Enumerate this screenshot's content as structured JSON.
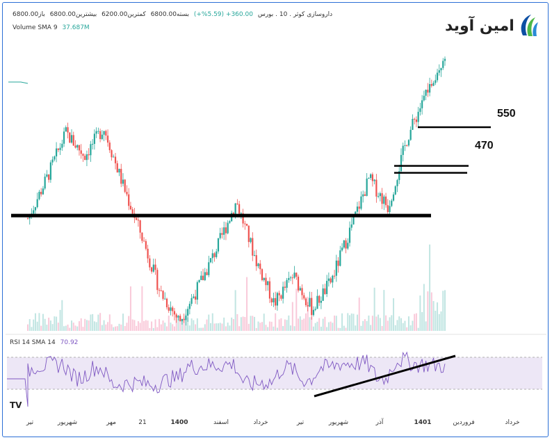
{
  "header": {
    "line1_symbol": "داروسازی کوثر . 10 . بورس",
    "line1_change": "360.00+ (5.59%+)",
    "line1_close": "بسته6800.00",
    "line1_low": "کمترین6200.00",
    "line1_high": "بیشترین6800.00",
    "line1_open": "باز6800.00",
    "volume_label": "Volume SMA 9",
    "volume_value": "37.687M"
  },
  "logo": {
    "text": "امین آوید",
    "icon": "amin-avid-logo-icon",
    "colors": [
      "#0d4fa3",
      "#4db848"
    ]
  },
  "levels": {
    "upper": "550",
    "middle": "470"
  },
  "rsi": {
    "label": "RSI 14 SMA 14",
    "value": "70.92",
    "color": "#7e57c2",
    "band_fill": "#ede7f6"
  },
  "colors": {
    "up": "#26a69a",
    "down": "#ef5350",
    "trendline": "#000000",
    "frame": "#2b6fd6"
  },
  "watermark_icon": "tradingview-icon",
  "chart_data": [
    {
      "type": "candlestick",
      "title": "",
      "xlabel": "",
      "ylabel": "",
      "x_tick_labels": [
        "تیر",
        "شهریور",
        "مهر",
        "21",
        "1400",
        "اسفند",
        "خرداد",
        "تیر",
        "شهریور",
        "آذر",
        "1401",
        "فروردین",
        "خرداد"
      ],
      "x_tick_bold": [
        false,
        false,
        false,
        false,
        true,
        false,
        false,
        false,
        false,
        false,
        true,
        false,
        false
      ],
      "close_path": [
        3900,
        4600,
        5400,
        5000,
        5500,
        4500,
        3600,
        2600,
        2100,
        2700,
        3400,
        4200,
        3200,
        2400,
        2900,
        2300,
        2800,
        3700,
        4600,
        4100,
        5300,
        6100,
        6800
      ],
      "horizontal_levels": [
        {
          "label": "",
          "value": 3950
        },
        {
          "label": "470",
          "value": 4700
        },
        {
          "label": "",
          "value": 4850
        },
        {
          "label": "550",
          "value": 5500
        }
      ]
    },
    {
      "type": "line",
      "title": "RSI 14 SMA 14",
      "series": [
        {
          "name": "RSI",
          "last": 70.92
        }
      ],
      "band": [
        30,
        70
      ]
    }
  ]
}
